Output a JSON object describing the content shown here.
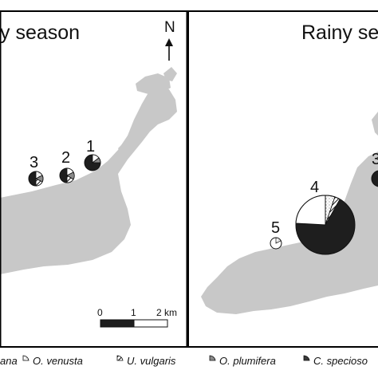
{
  "panels": {
    "left_title": "y season",
    "right_title": "Rainy se"
  },
  "north_arrow": {
    "label": "N"
  },
  "scale_bar": {
    "ticks": [
      "0",
      "1",
      "2 km"
    ]
  },
  "sites": {
    "left": [
      "1",
      "2",
      "3"
    ],
    "right": [
      "4",
      "5",
      "3"
    ]
  },
  "legend": {
    "items": [
      {
        "label": "ana",
        "swatch": "none"
      },
      {
        "label": "O. venusta",
        "swatch": "dotted"
      },
      {
        "label": "U. vulgaris",
        "swatch": "hatched"
      },
      {
        "label": "O. plumifera",
        "swatch": "#8a8a8a"
      },
      {
        "label": "C. specioso",
        "swatch": "#3a3a3a"
      }
    ]
  },
  "colors": {
    "land": "#c8c8c8",
    "frame": "#000000",
    "dark_slice": "#1e1e1e",
    "mid_slice": "#8a8a8a",
    "light_slice": "#ffffff"
  }
}
